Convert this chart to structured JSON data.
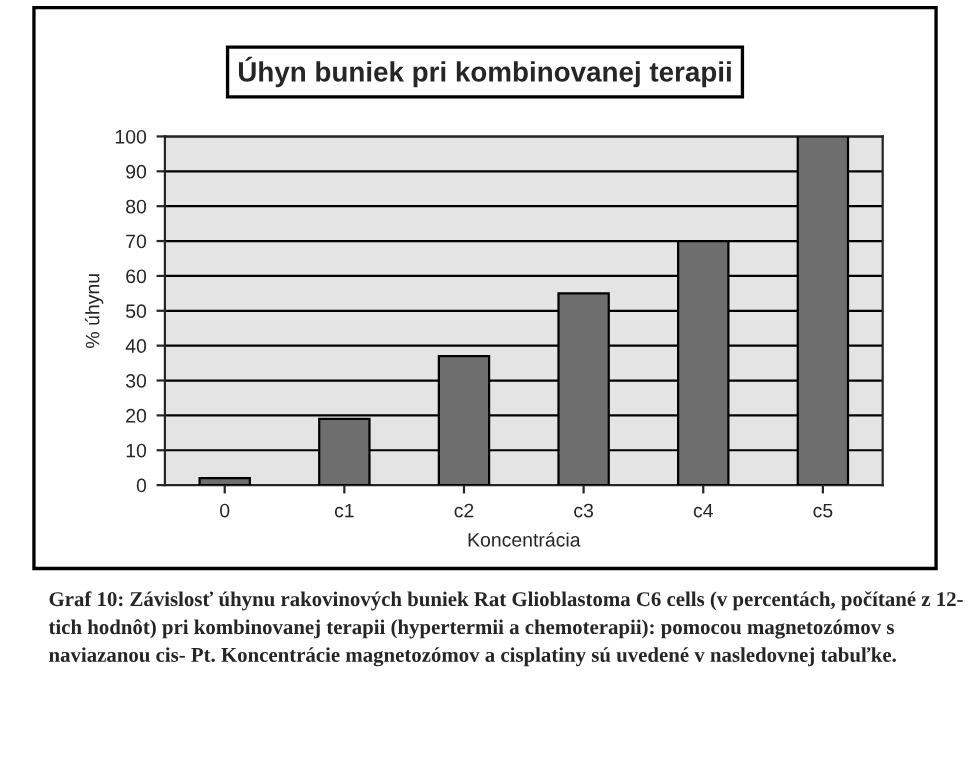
{
  "chart_data": {
    "type": "bar",
    "title": "Úhyn buniek pri kombinovanej terapii",
    "xlabel": "Koncentrácia",
    "ylabel": "% úhynu",
    "categories": [
      "0",
      "c1",
      "c2",
      "c3",
      "c4",
      "c5"
    ],
    "values": [
      2,
      19,
      37,
      55,
      70,
      100
    ],
    "color": "#6e6e6e",
    "ylim": [
      0,
      100
    ],
    "yticks": [
      0,
      10,
      20,
      30,
      40,
      50,
      60,
      70,
      80,
      90,
      100
    ],
    "grid": "y",
    "annotations": [
      "Graf 10: Závislosť úhynu rakovinových buniek Rat Glioblastoma C6 cells (v percentách, počítané z 12- tich hodnôt) pri kombinovanej terapii (hypertermii a chemoterapii): pomocou magnetozómov s naviazanou cis- Pt. Koncentrácie magnetozómov a cisplatiny sú uvedené v nasledovnej tabuľke."
    ]
  }
}
